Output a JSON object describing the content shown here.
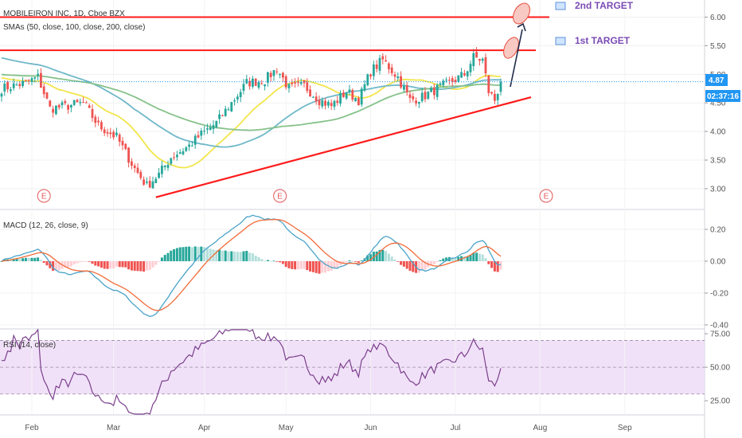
{
  "chart_data": [
    {
      "type": "candlestick",
      "title": "MOBILEIRON INC, 1D, Cboe BZX",
      "indicator_label": "SMAs (50, close, 100, close, 200, close)",
      "price_badge": "4.87",
      "time_badge": "02:37:16",
      "ylim": [
        2.65,
        6.3
      ],
      "yticks": [
        "6.00",
        "5.50",
        "5.00",
        "4.50",
        "4.00",
        "3.50",
        "3.00"
      ],
      "xticks": [
        "Feb",
        "Mar",
        "Apr",
        "May",
        "Jun",
        "Jul",
        "Aug",
        "Sep"
      ],
      "earnings_marker": "E",
      "targets": [
        {
          "label": "2nd TARGET",
          "price": 6.0
        },
        {
          "label": "1st TARGET",
          "price": 5.42
        }
      ],
      "trendline": {
        "from": [
          "Mar 16",
          2.85
        ],
        "to": [
          "Jul 17",
          4.6
        ]
      },
      "last_close": 4.87,
      "colors": {
        "up": "#26a69a",
        "down": "#ef5350",
        "sma50": "#f2e54b",
        "sma100": "#6fb8c9",
        "sma200": "#86c28a",
        "target": "#ff1a1a",
        "badge": "#2196f3"
      }
    },
    {
      "type": "line",
      "title": "MACD (12, 26, close, 9)",
      "ylim": [
        -0.42,
        0.32
      ],
      "yticks": [
        "0.20",
        "0.00",
        "-0.20",
        "-0.40"
      ],
      "series": [
        {
          "color": "#4aa3c9"
        },
        {
          "color": "#f26b38"
        }
      ]
    },
    {
      "type": "line",
      "title": "RSI (14, close)",
      "ylim": [
        15,
        78
      ],
      "yticks": [
        "75.00",
        "50.00",
        "25.00"
      ],
      "band": [
        30,
        70
      ],
      "series": [
        {
          "color": "#7b3f8c"
        }
      ]
    }
  ]
}
